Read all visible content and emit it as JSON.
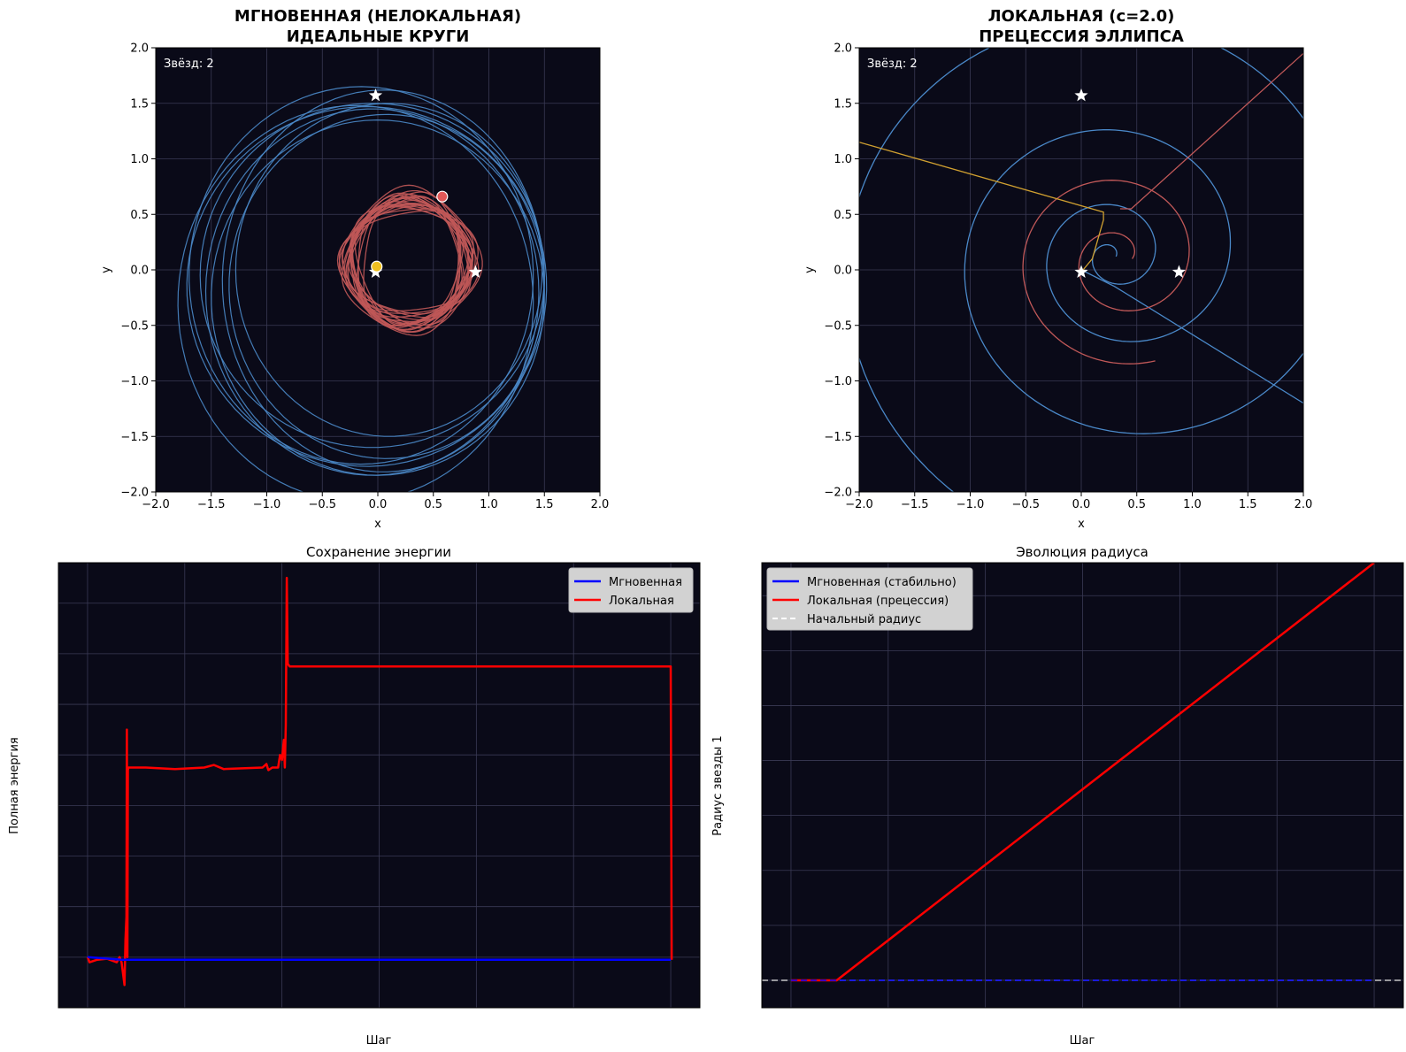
{
  "colors": {
    "plot_bg": "#0a0a18",
    "grid": "#3a3a55",
    "orbit_blue": "#4a88c8",
    "orbit_red": "#c05858",
    "orbit_gold": "#d0a030",
    "line_blue": "#0000ff",
    "line_red": "#ff0000",
    "dashed_initial": "#c8c8c8"
  },
  "chart_data": [
    {
      "type": "scatter",
      "title": "МГНОВЕННАЯ (НЕЛОКАЛЬНАЯ)\nИДЕАЛЬНЫЕ КРУГИ",
      "title_lines": [
        "МГНОВЕННАЯ (НЕЛОКАЛЬНАЯ)",
        "ИДЕАЛЬНЫЕ КРУГИ"
      ],
      "xlabel": "x",
      "ylabel": "y",
      "xlim": [
        -2,
        2
      ],
      "ylim": [
        -2,
        2
      ],
      "xticks": [
        -2.0,
        -1.5,
        -1.0,
        -0.5,
        0.0,
        0.5,
        1.0,
        1.5,
        2.0
      ],
      "yticks": [
        -2.0,
        -1.5,
        -1.0,
        -0.5,
        0.0,
        0.5,
        1.0,
        1.5,
        2.0
      ],
      "xtick_labels": [
        "−2.0",
        "−1.5",
        "−1.0",
        "−0.5",
        "0.0",
        "0.5",
        "1.0",
        "1.5",
        "2.0"
      ],
      "ytick_labels": [
        "−2.0",
        "−1.5",
        "−1.0",
        "−0.5",
        "0.0",
        "0.5",
        "1.0",
        "1.5",
        "2.0"
      ],
      "grid": true,
      "annotation": "Звёзд: 2",
      "star_markers": [
        {
          "x": -0.02,
          "y": 1.57
        },
        {
          "x": -0.02,
          "y": -0.02
        },
        {
          "x": 0.88,
          "y": -0.02
        }
      ],
      "bodies": [
        {
          "x": 0.58,
          "y": 0.66,
          "color": "#e05858"
        },
        {
          "x": -0.01,
          "y": 0.03,
          "color": "#f0c020"
        }
      ],
      "series": [
        {
          "orbit": "blue_loops",
          "center": [
            0.0,
            -0.1
          ],
          "radius": [
            1.48,
            1.78
          ],
          "color": "#4a88c8"
        },
        {
          "orbit": "red_band",
          "center": [
            0.28,
            0.07
          ],
          "radius": [
            0.62,
            0.64
          ],
          "color": "#c05858"
        }
      ]
    },
    {
      "type": "scatter",
      "title": "ЛОКАЛЬНАЯ (c=2.0)\nПРЕЦЕССИЯ ЭЛЛИПСА",
      "title_lines": [
        "ЛОКАЛЬНАЯ (c=2.0)",
        "ПРЕЦЕССИЯ ЭЛЛИПСА"
      ],
      "xlabel": "x",
      "ylabel": "y",
      "xlim": [
        -2,
        2
      ],
      "ylim": [
        -2,
        2
      ],
      "xticks": [
        -2.0,
        -1.5,
        -1.0,
        -0.5,
        0.0,
        0.5,
        1.0,
        1.5,
        2.0
      ],
      "yticks": [
        -2.0,
        -1.5,
        -1.0,
        -0.5,
        0.0,
        0.5,
        1.0,
        1.5,
        2.0
      ],
      "xtick_labels": [
        "−2.0",
        "−1.5",
        "−1.0",
        "−0.5",
        "0.0",
        "0.5",
        "1.0",
        "1.5",
        "2.0"
      ],
      "ytick_labels": [
        "−2.0",
        "−1.5",
        "−1.0",
        "−0.5",
        "0.0",
        "0.5",
        "1.0",
        "1.5",
        "2.0"
      ],
      "grid": true,
      "annotation": "Звёзд: 2",
      "star_markers": [
        {
          "x": 0.0,
          "y": 1.57
        },
        {
          "x": 0.0,
          "y": -0.02
        },
        {
          "x": 0.88,
          "y": -0.02
        }
      ]
    },
    {
      "type": "line",
      "title": "Сохранение энергии",
      "xlabel": "Шаг",
      "ylabel": "Полная энергия",
      "grid": true,
      "legend_position": "top-right",
      "xlim": [
        -0.3,
        6.3
      ],
      "ylim": [
        -1.0,
        7.8
      ],
      "series": [
        {
          "name": "Мгновенная",
          "color": "#0000ff",
          "x": [
            0.0,
            0.35,
            0.42,
            6.0
          ],
          "y": [
            0.0,
            -0.05,
            -0.05,
            -0.05
          ]
        },
        {
          "name": "Локальная",
          "color": "#ff0000",
          "x": [
            0.0,
            0.02,
            0.1,
            0.2,
            0.3,
            0.33,
            0.35,
            0.38,
            0.39,
            0.4,
            0.405,
            0.41,
            0.415,
            0.42,
            0.44,
            0.6,
            0.9,
            1.2,
            1.3,
            1.4,
            1.8,
            1.84,
            1.86,
            1.9,
            1.96,
            1.98,
            2.0,
            2.02,
            2.03,
            2.04,
            2.05,
            2.06,
            2.08,
            2.2,
            3.0,
            4.0,
            5.0,
            5.99,
            6.0,
            6.01
          ],
          "y": [
            0.0,
            -0.1,
            -0.05,
            -0.03,
            -0.1,
            0.0,
            -0.1,
            -0.55,
            0.35,
            0.8,
            4.5,
            0.0,
            3.7,
            3.75,
            3.75,
            3.75,
            3.72,
            3.75,
            3.8,
            3.72,
            3.75,
            3.82,
            3.7,
            3.75,
            3.75,
            4.0,
            3.9,
            4.3,
            3.75,
            4.6,
            7.5,
            5.8,
            5.75,
            5.75,
            5.75,
            5.75,
            5.75,
            5.75,
            5.75,
            -0.05
          ]
        }
      ]
    },
    {
      "type": "line",
      "title": "Эволюция радиуса",
      "xlabel": "Шаг",
      "ylabel": "Радиус звезды 1",
      "grid": true,
      "legend_position": "top-left",
      "xlim": [
        -0.3,
        6.3
      ],
      "ylim": [
        -0.5,
        7.6
      ],
      "series": [
        {
          "name": "Мгновенная (стабильно)",
          "color": "#0000ff",
          "style": "dashed",
          "x": [
            0.0,
            6.0
          ],
          "y": [
            0.0,
            0.0
          ]
        },
        {
          "name": "Локальная (прецессия)",
          "color": "#ff0000",
          "x": [
            0.0,
            0.47,
            6.0
          ],
          "y": [
            0.0,
            0.0,
            7.6
          ]
        },
        {
          "name": "Начальный радиус",
          "color": "#c8c8c8",
          "style": "dashed",
          "x": [
            -0.3,
            6.3
          ],
          "y": [
            0.0,
            0.0
          ]
        }
      ]
    }
  ]
}
